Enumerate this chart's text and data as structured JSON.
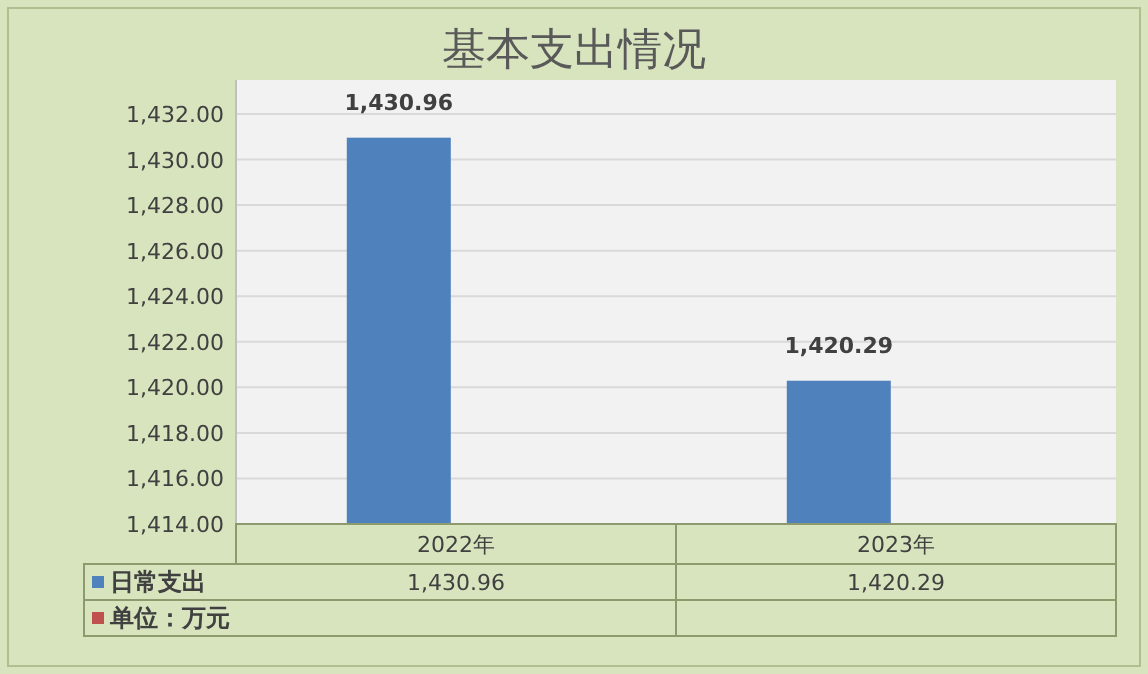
{
  "chart_data": {
    "type": "bar",
    "title": "基本支出情况",
    "categories": [
      "2022年",
      "2023年"
    ],
    "series": [
      {
        "name": "日常支出",
        "color": "#4f81bd",
        "values": [
          1430.96,
          1420.29
        ],
        "value_labels": [
          "1,430.96",
          "1,420.29"
        ]
      },
      {
        "name": "单位：万元",
        "color": "#c0504d",
        "values": [
          null,
          null
        ]
      }
    ],
    "ylim": [
      1414,
      1432
    ],
    "yticks": [
      {
        "value": 1414,
        "label": "1,414.00"
      },
      {
        "value": 1416,
        "label": "1,416.00"
      },
      {
        "value": 1418,
        "label": "1,418.00"
      },
      {
        "value": 1420,
        "label": "1,420.00"
      },
      {
        "value": 1422,
        "label": "1,422.00"
      },
      {
        "value": 1424,
        "label": "1,424.00"
      },
      {
        "value": 1426,
        "label": "1,426.00"
      },
      {
        "value": 1428,
        "label": "1,428.00"
      },
      {
        "value": 1430,
        "label": "1,430.00"
      },
      {
        "value": 1432,
        "label": "1,432.00"
      }
    ],
    "grid": "y",
    "legend": "bottom left"
  }
}
